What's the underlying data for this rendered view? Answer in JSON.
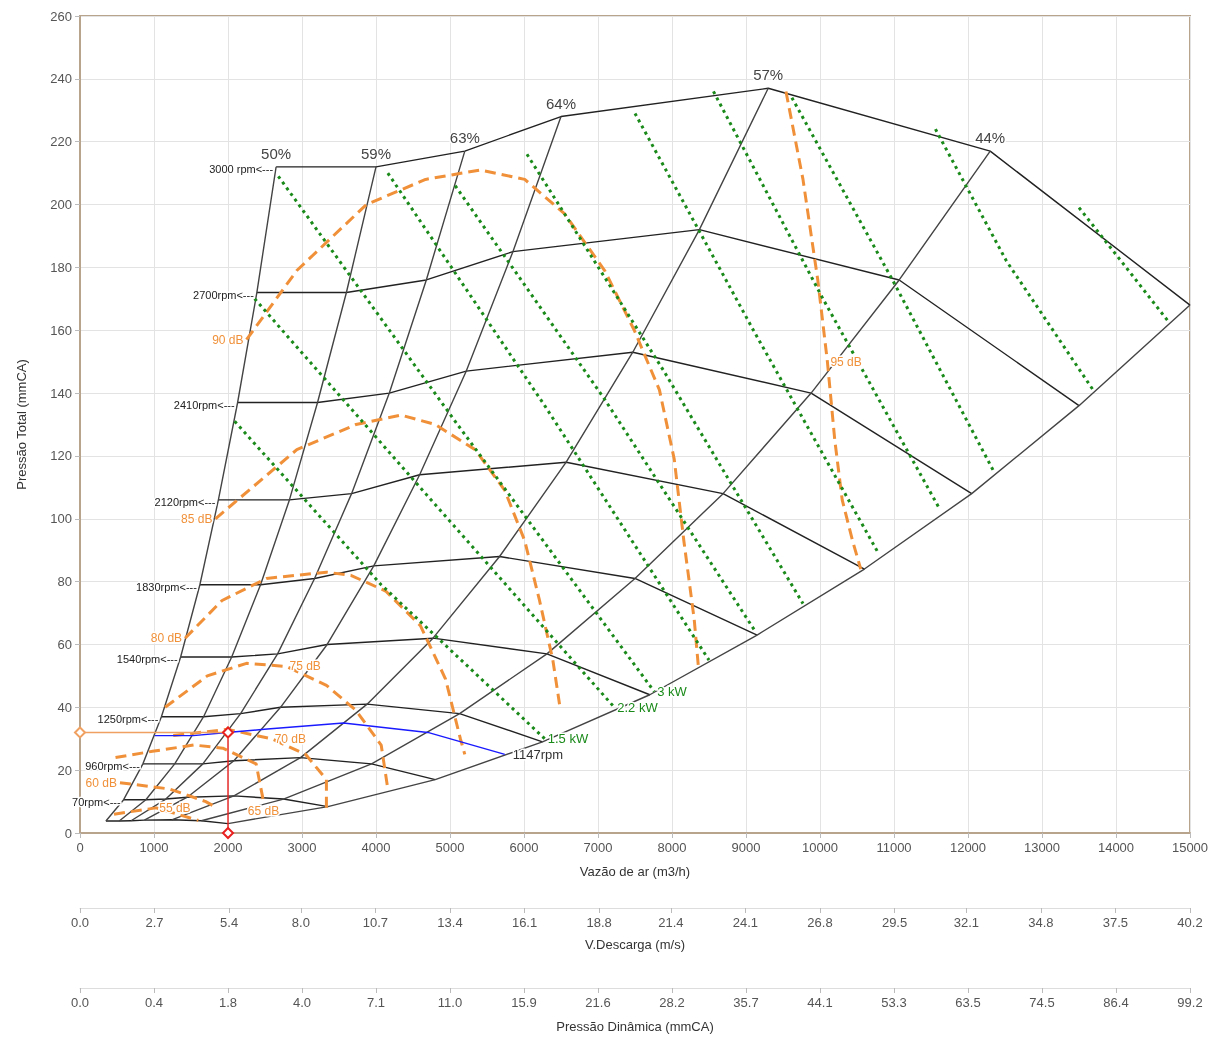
{
  "chart_data": [
    {
      "type": "line",
      "xlabel": "Vazão de ar (m3/h)",
      "ylabel": "Pressão Total (mmCA)",
      "x2label": "V.Descarga (m/s)",
      "xlim": [
        0,
        15000
      ],
      "xticks": [
        0,
        1000,
        2000,
        3000,
        4000,
        5000,
        6000,
        7000,
        8000,
        9000,
        10000,
        11000,
        12000,
        13000,
        14000,
        15000
      ],
      "ylim": [
        0,
        260
      ],
      "yticks": [
        0,
        20,
        40,
        60,
        80,
        100,
        120,
        140,
        160,
        180,
        200,
        220,
        240,
        260
      ],
      "x2lim": [
        0,
        40.2
      ],
      "x2ticks": [
        {
          "value": 0,
          "label": "0.0"
        },
        2.7,
        5.4,
        {
          "value": 8,
          "label": "8.0"
        },
        10.7,
        13.4,
        16.1,
        18.8,
        21.4,
        24.1,
        26.8,
        29.5,
        32.1,
        34.8,
        37.5,
        40.2
      ],
      "grid": true,
      "marker": "none",
      "annotations": [
        {
          "text": "1147rpm",
          "x": 5740,
          "y": 25
        }
      ],
      "series": [
        {
          "name": "3000 rpm<---",
          "color": "#222222",
          "line_style": "solid",
          "x": [
            2650,
            4000,
            5200,
            6500,
            9300,
            12300,
            15000
          ],
          "values": [
            212,
            212,
            217,
            228,
            237,
            217,
            168
          ]
        },
        {
          "name": "2700rpm<---",
          "color": "#222222",
          "line_style": "solid",
          "x": [
            2390,
            3600,
            4680,
            5850,
            8370,
            11070,
            13500
          ],
          "values": [
            172,
            172,
            176,
            185,
            192,
            176,
            136
          ]
        },
        {
          "name": "2410rpm<---",
          "color": "#222222",
          "line_style": "solid",
          "x": [
            2130,
            3210,
            4180,
            5220,
            7470,
            9880,
            12050
          ],
          "values": [
            137,
            137,
            140,
            147,
            153,
            140,
            108
          ]
        },
        {
          "name": "2120rpm<---",
          "color": "#222222",
          "line_style": "solid",
          "x": [
            1870,
            2830,
            3670,
            4590,
            6570,
            8690,
            10600
          ],
          "values": [
            106,
            106,
            108,
            114,
            118,
            108,
            84
          ]
        },
        {
          "name": "1830rpm<---",
          "color": "#222222",
          "line_style": "solid",
          "x": [
            1620,
            2440,
            3170,
            3970,
            5670,
            7500,
            9150
          ],
          "values": [
            79,
            79,
            81,
            85,
            88,
            81,
            63
          ]
        },
        {
          "name": "1540rpm<---",
          "color": "#222222",
          "line_style": "solid",
          "x": [
            1360,
            2050,
            2670,
            3340,
            4770,
            6310,
            7700
          ],
          "values": [
            56,
            56,
            57,
            60,
            62,
            57,
            44
          ]
        },
        {
          "name": "1250rpm<---",
          "color": "#222222",
          "line_style": "solid",
          "x": [
            1100,
            1670,
            2170,
            2710,
            3880,
            5130,
            6250
          ],
          "values": [
            37,
            37,
            38,
            40,
            41,
            38,
            29
          ]
        },
        {
          "name": "960rpm<---",
          "color": "#222222",
          "line_style": "solid",
          "x": [
            850,
            1280,
            1660,
            2080,
            2980,
            3940,
            4800
          ],
          "values": [
            22,
            22,
            22,
            23,
            24,
            22,
            17
          ]
        },
        {
          "name": "70rpm<---",
          "color": "#222222",
          "line_style": "solid",
          "x": [
            590,
            890,
            1160,
            1450,
            2080,
            2750,
            3350
          ],
          "values": [
            10.6,
            10.6,
            10.8,
            11.4,
            11.8,
            10.8,
            8.4
          ]
        },
        {
          "color": "#222222",
          "line_style": "solid",
          "x": [
            350,
            530,
            690,
            870,
            1240,
            1640,
            2000
          ],
          "values": [
            3.8,
            3.8,
            3.9,
            4.1,
            4.2,
            3.9,
            3
          ]
        },
        {
          "name": "50%",
          "color": "#444444",
          "line_style": "solid",
          "x": [
            350,
            590,
            850,
            1100,
            1360,
            1620,
            1870,
            2130,
            2390,
            2650
          ],
          "values": [
            3.8,
            10.6,
            22,
            37,
            56,
            79,
            106,
            137,
            172,
            212
          ]
        },
        {
          "name": "59%",
          "color": "#444444",
          "line_style": "solid",
          "x": [
            530,
            890,
            1280,
            1670,
            2050,
            2440,
            2830,
            3210,
            3600,
            4000
          ],
          "values": [
            3.8,
            10.6,
            22,
            37,
            56,
            79,
            106,
            137,
            172,
            212
          ]
        },
        {
          "name": "63%",
          "color": "#444444",
          "line_style": "solid",
          "x": [
            690,
            1160,
            1660,
            2170,
            2670,
            3170,
            3670,
            4180,
            4680,
            5200
          ],
          "values": [
            3.9,
            10.8,
            22,
            38,
            57,
            81,
            108,
            140,
            176,
            217
          ]
        },
        {
          "name": "64%",
          "color": "#444444",
          "line_style": "solid",
          "x": [
            870,
            1450,
            2080,
            2710,
            3340,
            3970,
            4590,
            5220,
            5850,
            6500
          ],
          "values": [
            4.1,
            11.4,
            23,
            40,
            60,
            85,
            114,
            147,
            185,
            228
          ]
        },
        {
          "name": "57%",
          "color": "#444444",
          "line_style": "solid",
          "x": [
            1240,
            2080,
            2980,
            3880,
            4770,
            5670,
            6570,
            7470,
            8370,
            9300
          ],
          "values": [
            4.2,
            11.8,
            24,
            41,
            62,
            88,
            118,
            153,
            192,
            237
          ]
        },
        {
          "name": "44%",
          "color": "#444444",
          "line_style": "solid",
          "x": [
            1640,
            2750,
            3940,
            5130,
            6310,
            7500,
            8690,
            9880,
            11070,
            12300
          ],
          "values": [
            3.9,
            10.8,
            22,
            38,
            57,
            81,
            108,
            140,
            176,
            217
          ]
        },
        {
          "color": "#444444",
          "line_style": "solid",
          "x": [
            2000,
            3350,
            4800,
            6250,
            7700,
            9150,
            10600,
            12050,
            13500,
            15000
          ],
          "values": [
            3,
            8.4,
            17,
            29,
            44,
            63,
            84,
            108,
            136,
            168
          ]
        },
        {
          "name": "95 dB",
          "color": "#f0913a",
          "line_style": "dashed",
          "x": [
            9540,
            9770,
            9970,
            10100,
            10200,
            10300,
            10440,
            10550
          ],
          "values": [
            236,
            208,
            176,
            150,
            125,
            106,
            93,
            84
          ]
        },
        {
          "name": "90 dB",
          "color": "#f0913a",
          "line_style": "dashed",
          "x": [
            2250,
            2930,
            3870,
            4670,
            5410,
            6010,
            6550,
            7090,
            7490,
            7830,
            8030,
            8160,
            8300,
            8360
          ],
          "values": [
            157,
            179,
            200,
            208,
            211,
            208,
            197,
            179,
            160,
            141,
            119,
            93,
            68,
            52
          ]
        },
        {
          "name": "85 dB",
          "color": "#f0913a",
          "line_style": "dashed",
          "x": [
            1830,
            2930,
            3730,
            4340,
            4800,
            5340,
            5740,
            6010,
            6210,
            6390,
            6480
          ],
          "values": [
            100,
            122,
            130,
            133,
            130,
            122,
            109,
            93,
            74,
            55,
            41
          ]
        },
        {
          "name": "80 dB",
          "color": "#f0913a",
          "line_style": "dashed",
          "x": [
            1420,
            1920,
            2520,
            3330,
            3660,
            4130,
            4600,
            4940,
            5140,
            5200
          ],
          "values": [
            62,
            74,
            81,
            83,
            82,
            77,
            66,
            49,
            30,
            25
          ]
        },
        {
          "name": "75 dB",
          "color": "#f0913a",
          "line_style": "dashed",
          "x": [
            1150,
            1720,
            2250,
            2790,
            3330,
            3730,
            4070,
            4160
          ],
          "values": [
            40,
            50,
            54,
            53,
            47,
            39,
            28,
            14
          ]
        },
        {
          "name": "70 dB",
          "color": "#f0913a",
          "line_style": "dashed",
          "x": [
            1260,
            1990,
            2590,
            3050,
            3330,
            3330
          ],
          "values": [
            31,
            33,
            30,
            25,
            17,
            8
          ]
        },
        {
          "name": "65 dB",
          "color": "#f0913a",
          "line_style": "dashed",
          "x": [
            480,
            980,
            1540,
            1930,
            2380,
            2480
          ],
          "values": [
            24,
            26,
            28,
            27,
            22,
            10
          ]
        },
        {
          "name": "60 dB",
          "color": "#f0913a",
          "line_style": "dashed",
          "x": [
            540,
            1210,
            1700,
            1850
          ],
          "values": [
            16,
            14,
            10,
            8
          ]
        },
        {
          "name": "55 dB",
          "color": "#f0913a",
          "line_style": "dashed",
          "x": [
            460,
            1030,
            1600
          ],
          "values": [
            6,
            8,
            4
          ]
        },
        {
          "name": "1.5 kW",
          "color": "#1a8a1a",
          "line_style": "dotted",
          "x": [
            2090,
            4070,
            6280
          ],
          "values": [
            131,
            79,
            30
          ]
        },
        {
          "name": "2.2 kW",
          "color": "#1a8a1a",
          "line_style": "dotted",
          "x": [
            2360,
            4670,
            7220
          ],
          "values": [
            170,
            108,
            40
          ]
        },
        {
          "name": "3 kW",
          "color": "#1a8a1a",
          "line_style": "dotted",
          "x": [
            2680,
            5070,
            7760
          ],
          "values": [
            209,
            131,
            45
          ]
        },
        {
          "color": "#1a8a1a",
          "line_style": "dotted",
          "x": [
            4160,
            6280,
            8500
          ],
          "values": [
            210,
            136,
            55
          ]
        },
        {
          "color": "#1a8a1a",
          "line_style": "dotted",
          "x": [
            5070,
            7090,
            9130
          ],
          "values": [
            206,
            138,
            64
          ]
        },
        {
          "color": "#1a8a1a",
          "line_style": "dotted",
          "x": [
            6040,
            7890,
            9770
          ],
          "values": [
            216,
            147,
            73
          ]
        },
        {
          "color": "#1a8a1a",
          "line_style": "dotted",
          "x": [
            7500,
            9100,
            10790
          ],
          "values": [
            229,
            160,
            89
          ]
        },
        {
          "color": "#1a8a1a",
          "line_style": "dotted",
          "x": [
            8560,
            10040,
            11620
          ],
          "values": [
            236,
            170,
            103
          ]
        },
        {
          "color": "#1a8a1a",
          "line_style": "dotted",
          "x": [
            9620,
            10980,
            12350
          ],
          "values": [
            234,
            176,
            115
          ]
        },
        {
          "color": "#1a8a1a",
          "line_style": "dotted",
          "x": [
            11560,
            12520,
            13690
          ],
          "values": [
            224,
            182,
            141
          ]
        },
        {
          "color": "#1a8a1a",
          "line_style": "dotted",
          "x": [
            13500,
            14070,
            14700
          ],
          "values": [
            199,
            182,
            163
          ]
        },
        {
          "color": "#1a1aff",
          "line_style": "solid",
          "x": [
            1010,
            1530,
            1990,
            2490,
            3560,
            4700,
            5740
          ],
          "values": [
            31,
            31,
            32,
            33,
            35,
            32,
            25
          ]
        },
        {
          "color": "#f0a060",
          "line_style": "solid",
          "marker": "diamond",
          "x": [
            0,
            2000
          ],
          "values": [
            32,
            32
          ]
        },
        {
          "color": "#e82020",
          "line_style": "solid",
          "marker": "diamond",
          "x": [
            2000,
            2000
          ],
          "values": [
            0,
            32
          ]
        }
      ]
    },
    {
      "type": "other",
      "xlabel": "Pressão Dinâmica (mmCA)",
      "annotations": [
        "0.0",
        "0.4",
        "1.8",
        "4.0",
        "7.1",
        "11.0",
        "15.9",
        "21.6",
        "28.2",
        "35.7",
        "44.1",
        "53.3",
        "63.5",
        "74.5",
        "86.4",
        "99.2"
      ]
    }
  ]
}
